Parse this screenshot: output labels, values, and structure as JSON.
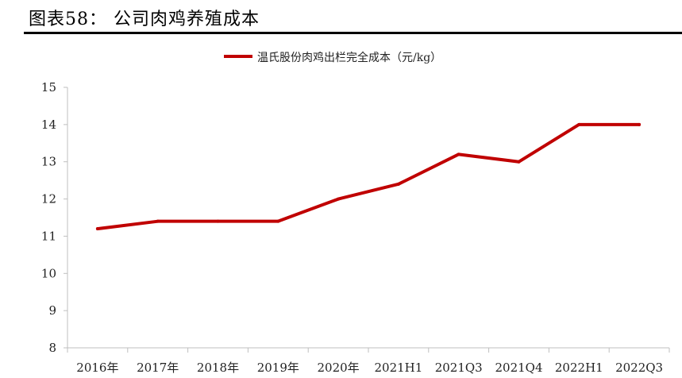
{
  "header": {
    "title": "图表58：   公司肉鸡养殖成本"
  },
  "chart_data": {
    "type": "line",
    "title": "",
    "xlabel": "",
    "ylabel": "",
    "categories": [
      "2016年",
      "2017年",
      "2018年",
      "2019年",
      "2020年",
      "2021H1",
      "2021Q3",
      "2021Q4",
      "2022H1",
      "2022Q3"
    ],
    "series": [
      {
        "name": "温氏股份肉鸡出栏完全成本（元/kg）",
        "values": [
          11.2,
          11.4,
          11.4,
          11.4,
          12.0,
          12.4,
          13.2,
          13.0,
          14.0,
          14.0
        ],
        "color": "#C00000"
      }
    ],
    "ylim": [
      8,
      15
    ],
    "yticks": [
      8,
      9,
      10,
      11,
      12,
      13,
      14,
      15
    ],
    "grid": false,
    "legend_position": "top-center"
  }
}
